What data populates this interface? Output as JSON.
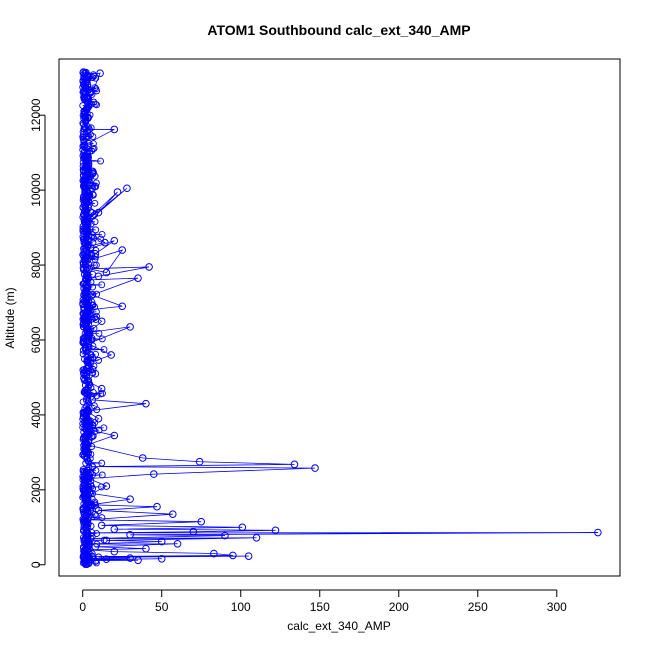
{
  "chart_data": {
    "type": "scatter",
    "title": "ATOM1 Southbound calc_ext_340_AMP",
    "xlabel": "calc_ext_340_AMP",
    "ylabel": "Altitude (m)",
    "xlim": [
      -15,
      340
    ],
    "ylim": [
      -300,
      13500
    ],
    "x_ticks": [
      0,
      50,
      100,
      150,
      200,
      250,
      300
    ],
    "y_ticks": [
      0,
      2000,
      4000,
      6000,
      8000,
      10000,
      12000
    ],
    "grid": false,
    "legend": "none",
    "series_color": "#0000ff",
    "marker": "open-circle",
    "connected": true,
    "series": [
      {
        "x": [
          0.5,
          1.0,
          11.0,
          0.5,
          2.0,
          4.0,
          20.0,
          1.0,
          3.0,
          6.0,
          2.0,
          8.0,
          4.0,
          1.0,
          10.0,
          28.0,
          3.0,
          22.0,
          1.5,
          6.0,
          14.0,
          3.0,
          5.0,
          20.0,
          8.0,
          2.0,
          25.0,
          15.0,
          4.0,
          42.0,
          10.0,
          2.5,
          35.0,
          6.0,
          25.0,
          3.0,
          12.0,
          4.0,
          30.0,
          3.5,
          18.0,
          5.0,
          8.0,
          3.0,
          12.0,
          6.0,
          40.0,
          2.5,
          10.0,
          4.0,
          20.0,
          3.0,
          38.0,
          74.0,
          134.0,
          6.0,
          147.0,
          45.0,
          4.0,
          15.0,
          6.0,
          30.0,
          5.0,
          47.0,
          10.0,
          57.0,
          3.0,
          75.0,
          12.0,
          101.0,
          20.0,
          122.0,
          70.0,
          3.0,
          326.0,
          30.0,
          90.0,
          5.0,
          110.0,
          15.0,
          50.0,
          2.0,
          60.0,
          8.0,
          40.0,
          3.0,
          20.0,
          83.0,
          95.0,
          6.0,
          105.0,
          10.0,
          30.0,
          2.0,
          15.0,
          4.0,
          50.0,
          1.0,
          35.0,
          2.0,
          8.0
        ],
        "y": [
          13150,
          13100,
          13120,
          12000,
          11650,
          11620,
          11620,
          11200,
          10900,
          10500,
          10300,
          10100,
          9800,
          9600,
          9400,
          10050,
          9200,
          9950,
          9000,
          8800,
          8600,
          8500,
          8450,
          8650,
          8300,
          8100,
          8400,
          7800,
          7900,
          7950,
          7700,
          7600,
          7650,
          7200,
          6900,
          6800,
          6500,
          6200,
          6350,
          5900,
          5600,
          5400,
          5100,
          4900,
          4700,
          4400,
          4300,
          4100,
          3900,
          3600,
          3450,
          3200,
          2850,
          2750,
          2680,
          2620,
          2580,
          2420,
          2300,
          2100,
          1900,
          1750,
          1600,
          1550,
          1450,
          1350,
          1200,
          1150,
          1050,
          1000,
          950,
          920,
          880,
          850,
          860,
          800,
          780,
          700,
          720,
          650,
          620,
          550,
          560,
          480,
          430,
          400,
          350,
          300,
          250,
          220,
          230,
          200,
          180,
          160,
          150,
          140,
          160,
          130,
          120,
          110,
          100
        ]
      }
    ]
  }
}
